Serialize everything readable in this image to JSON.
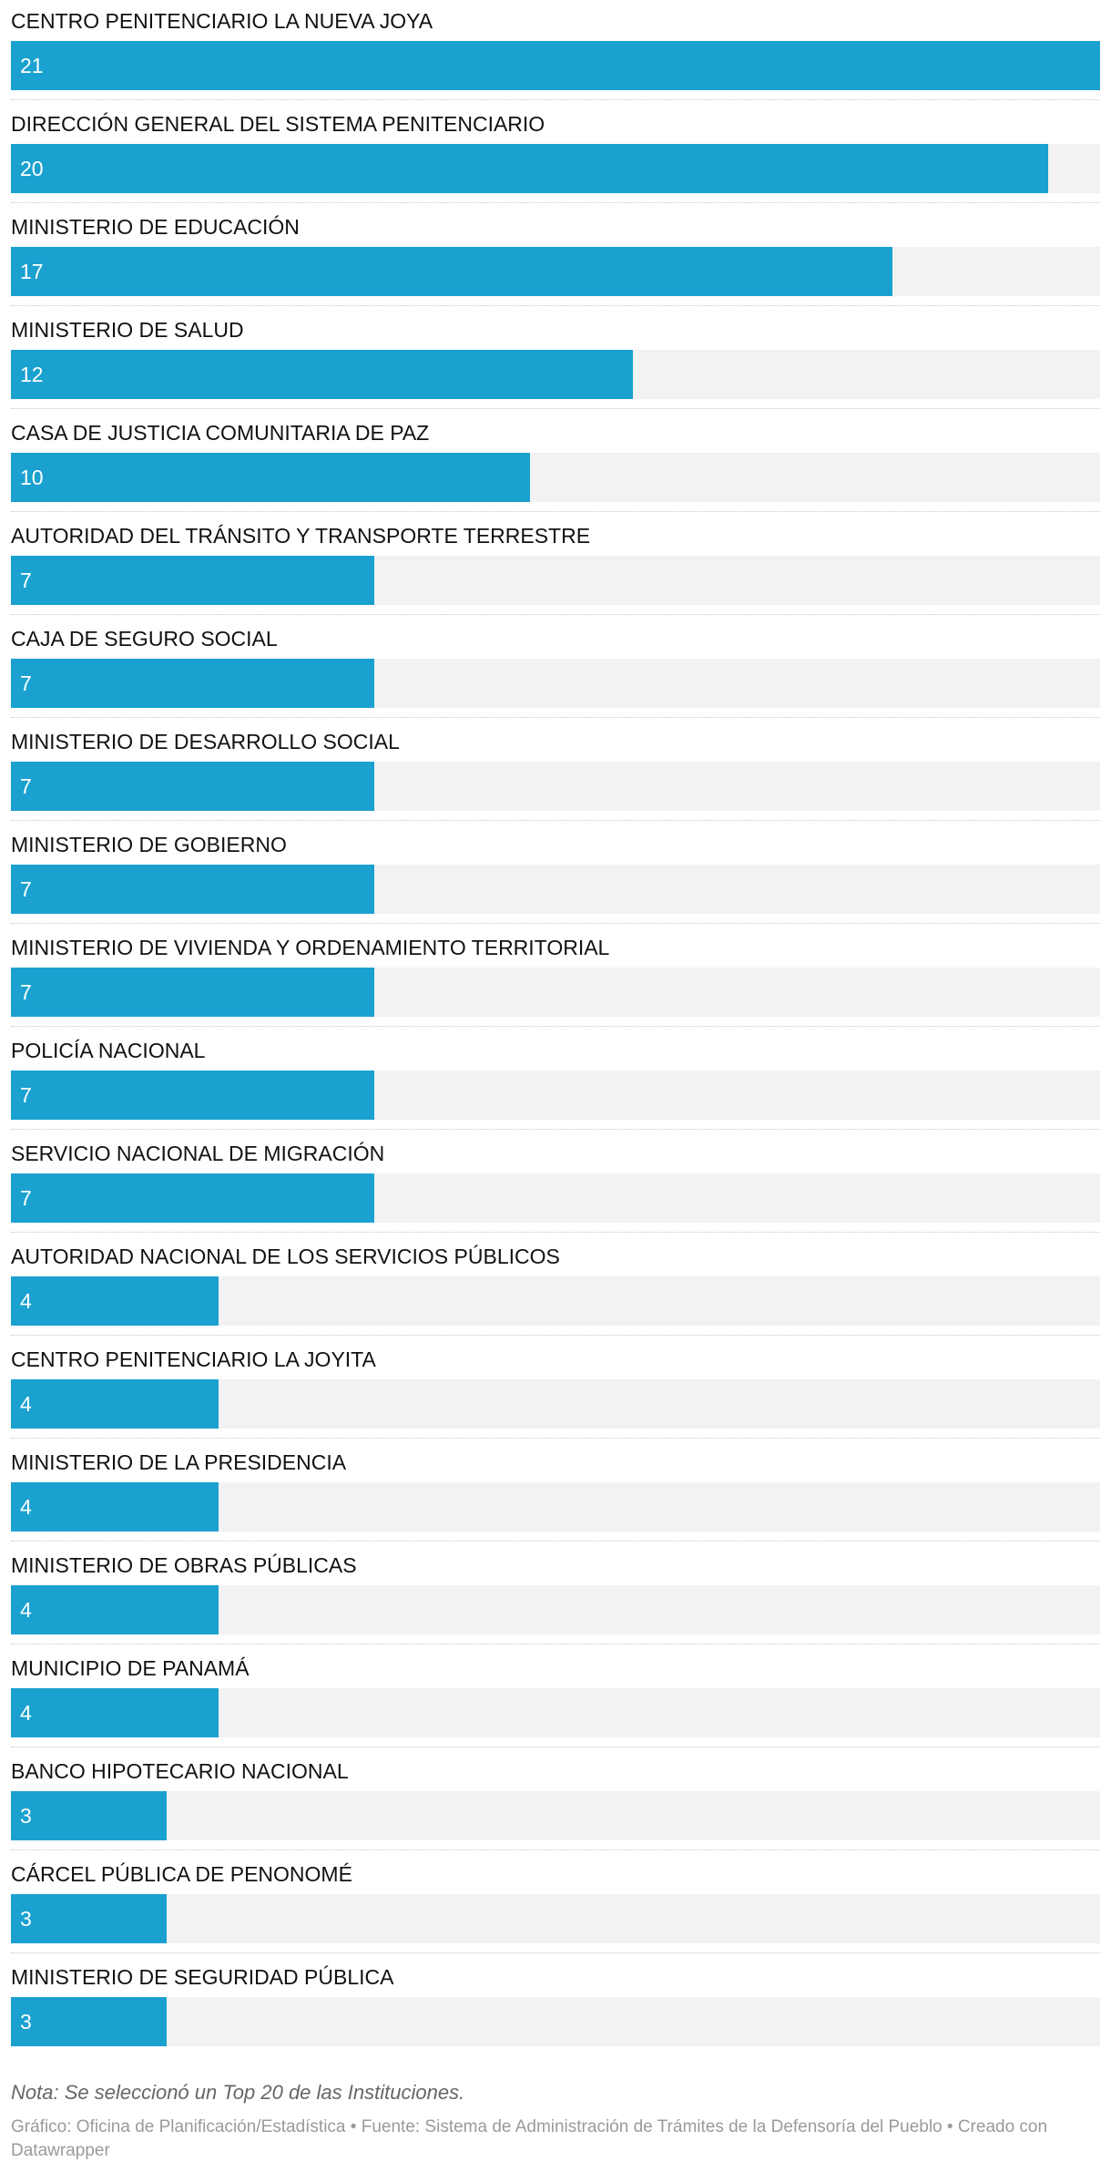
{
  "chart_data": {
    "type": "bar",
    "orientation": "horizontal",
    "categories": [
      "CENTRO PENITENCIARIO LA NUEVA JOYA",
      "DIRECCIÓN GENERAL DEL SISTEMA PENITENCIARIO",
      "MINISTERIO DE EDUCACIÓN",
      "MINISTERIO DE SALUD",
      "CASA DE JUSTICIA COMUNITARIA DE PAZ",
      "AUTORIDAD DEL TRÁNSITO Y TRANSPORTE TERRESTRE",
      "CAJA DE SEGURO SOCIAL",
      "MINISTERIO DE DESARROLLO SOCIAL",
      "MINISTERIO DE GOBIERNO",
      "MINISTERIO DE VIVIENDA Y ORDENAMIENTO TERRITORIAL",
      "POLICÍA NACIONAL",
      "SERVICIO NACIONAL DE MIGRACIÓN",
      "AUTORIDAD NACIONAL DE LOS SERVICIOS PÚBLICOS",
      "CENTRO PENITENCIARIO LA JOYITA",
      "MINISTERIO DE LA PRESIDENCIA",
      "MINISTERIO DE OBRAS PÚBLICAS",
      "MUNICIPIO DE PANAMÁ",
      "BANCO HIPOTECARIO NACIONAL",
      "CÁRCEL PÚBLICA DE PENONOMÉ",
      "MINISTERIO DE SEGURIDAD PÚBLICA"
    ],
    "values": [
      21,
      20,
      17,
      12,
      10,
      7,
      7,
      7,
      7,
      7,
      7,
      7,
      4,
      4,
      4,
      4,
      4,
      3,
      3,
      3
    ],
    "xlim": [
      0,
      21
    ],
    "grid": false,
    "legend": "none",
    "colors": {
      "bar": "#1aa1cf",
      "track": "#f2f2f2"
    }
  },
  "footer": {
    "note": "Nota: Se seleccionó un Top 20 de las Instituciones.",
    "credits": "Gráfico: Oficina de Planificación/Estadística • Fuente: Sistema de Administración de Trámites de la Defensoría del Pueblo • Creado con Datawrapper"
  }
}
